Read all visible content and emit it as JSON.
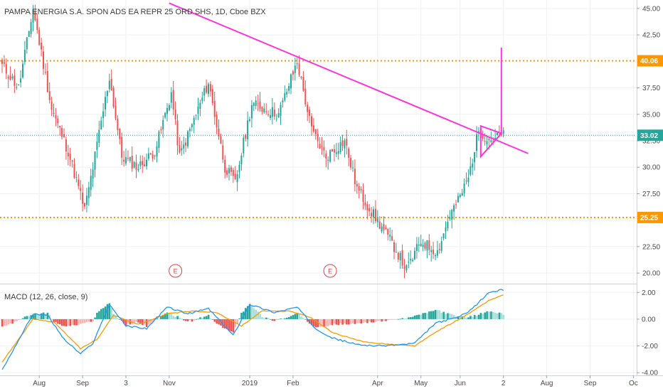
{
  "header": {
    "title": "PAMPA ENERGIA S.A. SPON ADS EA REPR 25 ORD SHS, 1D, Cboe BZX"
  },
  "colors": {
    "up": "#26a69a",
    "down": "#ef5350",
    "trendline": "#ff33dd",
    "level": "#ff9800",
    "last_price": "#26a69a",
    "macd_line": "#2196f3",
    "signal_line": "#ff9800",
    "hist_up": "#26a69a",
    "hist_up_fading": "#a8ded9",
    "hist_down": "#ef5350",
    "hist_down_fading": "#f7b6b4"
  },
  "chart_data": [
    {
      "type": "candlestick",
      "title": "PAMPA ENERGIA S.A. SPON ADS EA REPR 25 ORD SHS, 1D, Cboe BZX",
      "x_labels": [
        "Aug",
        "Sep",
        "3",
        "Nov",
        "2019",
        "Feb",
        "Apr",
        "May",
        "Jun",
        "2",
        "Aug",
        "Sep",
        "Oc"
      ],
      "y_ticks": [
        "45.00",
        "42.50",
        "37.50",
        "35.00",
        "32.50",
        "30.00",
        "27.50",
        "22.50",
        "20.00"
      ],
      "ylim": [
        19.0,
        45.8
      ],
      "price_tags": [
        {
          "label": "40.06",
          "value": 40.06,
          "color": "orange"
        },
        {
          "label": "33.02",
          "value": 33.02,
          "color": "teal"
        },
        {
          "label": "25.25",
          "value": 25.25,
          "color": "orange"
        }
      ],
      "horizontal_levels": [
        40.06,
        25.25
      ],
      "last_price": 33.02,
      "trendline": {
        "from": {
          "bar": 81,
          "price": 45.5
        },
        "to": {
          "bar": 255,
          "price": 31.3
        }
      },
      "triangle": [
        {
          "bar": 232,
          "price": 33.9
        },
        {
          "bar": 242,
          "price": 33.2
        },
        {
          "bar": 232,
          "price": 31.0
        }
      ],
      "projection": {
        "bar": 242,
        "from": 33.2,
        "to": 41.3
      },
      "earnings_markers": [
        {
          "bar": 84,
          "label": "E"
        },
        {
          "bar": 159,
          "label": "E"
        }
      ],
      "anchors": [
        [
          0,
          39.6
        ],
        [
          8,
          37.5
        ],
        [
          15,
          45.0
        ],
        [
          24,
          35.5
        ],
        [
          32,
          31.5
        ],
        [
          40,
          26.0
        ],
        [
          44,
          30.0
        ],
        [
          52,
          38.5
        ],
        [
          58,
          31.0
        ],
        [
          66,
          30.0
        ],
        [
          74,
          31.5
        ],
        [
          82,
          37.0
        ],
        [
          86,
          31.0
        ],
        [
          100,
          38.0
        ],
        [
          108,
          30.0
        ],
        [
          113,
          28.5
        ],
        [
          121,
          36.0
        ],
        [
          134,
          35.0
        ],
        [
          143,
          40.0
        ],
        [
          150,
          33.5
        ],
        [
          157,
          31.0
        ],
        [
          166,
          32.5
        ],
        [
          172,
          28.0
        ],
        [
          180,
          25.5
        ],
        [
          190,
          22.5
        ],
        [
          196,
          20.3
        ],
        [
          203,
          23.0
        ],
        [
          211,
          22.0
        ],
        [
          217,
          25.5
        ],
        [
          221,
          26.8
        ],
        [
          226,
          29.0
        ],
        [
          231,
          33.5
        ],
        [
          236,
          32.6
        ],
        [
          243,
          33.0
        ]
      ]
    },
    {
      "type": "line",
      "title": "MACD (12, 26, close, 9)",
      "y_ticks": [
        "2.00",
        "0.00",
        "-2.00",
        "-4.00"
      ],
      "ylim": [
        -4.2,
        2.6
      ],
      "series": [
        {
          "name": "MACD",
          "anchors": [
            [
              0,
              -3.8
            ],
            [
              15,
              0.4
            ],
            [
              22,
              0.3
            ],
            [
              30,
              -1.5
            ],
            [
              38,
              -2.6
            ],
            [
              44,
              -1.8
            ],
            [
              52,
              1.1
            ],
            [
              60,
              -0.5
            ],
            [
              70,
              -0.7
            ],
            [
              80,
              0.9
            ],
            [
              90,
              0.4
            ],
            [
              100,
              0.8
            ],
            [
              112,
              -1.2
            ],
            [
              120,
              1.1
            ],
            [
              132,
              0.5
            ],
            [
              143,
              0.9
            ],
            [
              152,
              -0.7
            ],
            [
              160,
              -1.4
            ],
            [
              172,
              -1.9
            ],
            [
              182,
              -2.0
            ],
            [
              194,
              -1.9
            ],
            [
              200,
              -1.8
            ],
            [
              210,
              -0.3
            ],
            [
              222,
              0.2
            ],
            [
              228,
              0.8
            ],
            [
              236,
              2.0
            ],
            [
              243,
              2.2
            ]
          ]
        },
        {
          "name": "Signal",
          "anchors": [
            [
              0,
              -3.2
            ],
            [
              15,
              0.0
            ],
            [
              25,
              -0.2
            ],
            [
              38,
              -2.2
            ],
            [
              46,
              -1.5
            ],
            [
              54,
              0.3
            ],
            [
              66,
              -0.4
            ],
            [
              80,
              0.4
            ],
            [
              92,
              0.6
            ],
            [
              104,
              0.5
            ],
            [
              116,
              -0.5
            ],
            [
              126,
              0.6
            ],
            [
              140,
              0.6
            ],
            [
              150,
              0.1
            ],
            [
              160,
              -1.0
            ],
            [
              175,
              -1.7
            ],
            [
              190,
              -1.9
            ],
            [
              200,
              -2.0
            ],
            [
              212,
              -0.8
            ],
            [
              224,
              0.2
            ],
            [
              236,
              1.4
            ],
            [
              243,
              1.8
            ]
          ]
        }
      ]
    }
  ]
}
